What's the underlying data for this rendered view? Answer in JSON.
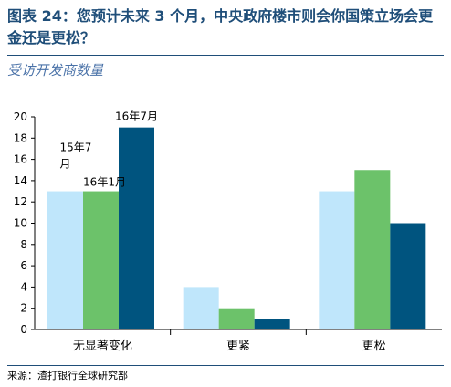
{
  "title": "图表 24：您预计未来 3 个月，中央政府楼市则会你国策立场会更金还是更松？",
  "subtitle": "受访开发商数量",
  "source": "来源：渣打银行全球研究部",
  "colors": {
    "s1": "#bfe6fb",
    "s2": "#6cc26a",
    "s3": "#00547f",
    "heading": "#1f4e79"
  },
  "chart_data": {
    "type": "bar",
    "categories": [
      "无显著变化",
      "更紧",
      "更松"
    ],
    "series": [
      {
        "name": "15年7月",
        "values": [
          13,
          4,
          13
        ]
      },
      {
        "name": "16年1月",
        "values": [
          13,
          2,
          15
        ]
      },
      {
        "name": "16年7月",
        "values": [
          19,
          1,
          10
        ]
      }
    ],
    "yticks": [
      "0",
      "2",
      "4",
      "6",
      "8",
      "10",
      "12",
      "14",
      "16",
      "18",
      "20"
    ],
    "ylim": [
      0,
      20
    ],
    "grid": false,
    "legend": "inline labels above first category bars"
  }
}
